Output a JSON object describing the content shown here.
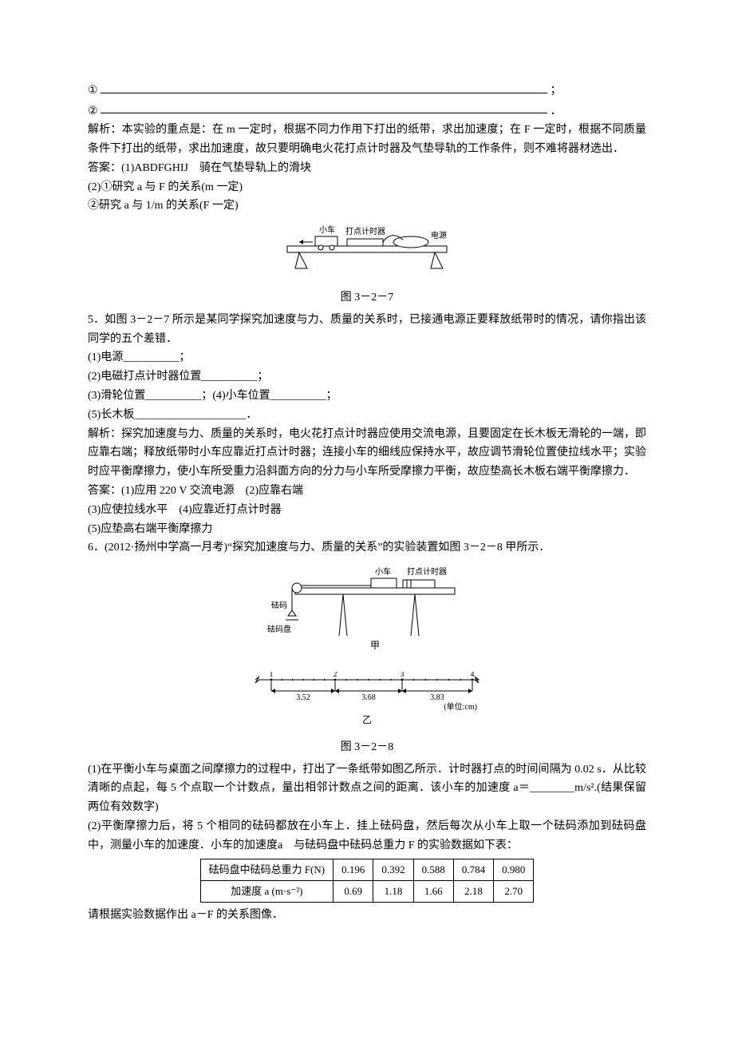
{
  "line1_prefix": "①",
  "line1_suffix": "；",
  "line2_prefix": "②",
  "line2_suffix": "．",
  "analysis1": "解析：本实验的重点是：在 m 一定时，根据不同力作用下打出的纸带，求出加速度；在 F 一定时，根据不同质量条件下打出的纸带，求出加速度，故只要明确电火花打点计时器及气垫导轨的工作条件，则不难将器材选出．",
  "ans1_l1": "答案：(1)ABDFGHIJ　骑在气垫导轨上的滑块",
  "ans1_l2": "(2)①研究 a 与 F 的关系(m 一定)",
  "ans1_l3": "②研究 a 与 1/m 的关系(F 一定)",
  "fig1_caption": "图 3－2－7",
  "fig1_labels": {
    "car": "小车",
    "timer": "打点计时器",
    "power": "电源"
  },
  "q5_stem": "5．如图 3－2－7 所示是某同学探究加速度与力、质量的关系时，已接通电源正要释放纸带时的情况，请你指出该同学的五个差错．",
  "q5_1": "(1)电源__________；",
  "q5_2": "(2)电磁打点计时器位置__________；",
  "q5_3": "(3)滑轮位置__________；(4)小车位置__________；",
  "q5_5": "(5)长木板____________________．",
  "analysis2": "解析：探究加速度与力、质量的关系时，电火花打点计时器应使用交流电源，且要固定在长木板无滑轮的一端，即应靠右端；释放纸带时小车应靠近打点计时器；连接小车的细线应保持水平，故应调节滑轮位置使拉线水平；实验时应平衡摩擦力，使小车所受重力沿斜面方向的分力与小车所受摩擦力平衡，故应垫高长木板右端平衡摩擦力．",
  "ans2_l1": "答案：(1)应用 220 V 交流电源　(2)应靠右端",
  "ans2_l2": "(3)应使拉线水平　(4)应靠近打点计时器",
  "ans2_l3": "(5)应垫高右端平衡摩擦力",
  "q6_stem": "6．(2012·扬州中学高一月考)“探究加速度与力、质量的关系”的实验装置如图 3－2－8 甲所示．",
  "fig2_labels": {
    "car": "小车",
    "timer": "打点计时器",
    "weight": "砝码",
    "pan": "砝码盘",
    "jia": "甲"
  },
  "tape": {
    "marks": [
      "1",
      "2",
      "3",
      "4"
    ],
    "dists": [
      "3.52",
      "3.68",
      "3.83"
    ],
    "unit": "(单位:cm)",
    "yi": "乙"
  },
  "fig2_caption": "图 3－2－8",
  "q6_1": "(1)在平衡小车与桌面之间摩擦力的过程中，打出了一条纸带如图乙所示．计时器打点的时间间隔为 0.02 s．从比较清晰的点起，每 5 个点取一个计数点，量出相邻计数点之间的距离．该小车的加速度 a＝________m/s².(结果保留两位有效数字)",
  "q6_2": "(2)平衡摩擦力后，将 5 个相同的砝码都放在小车上．挂上砝码盘，然后每次从小车上取一个砝码添加到砝码盘中，测量小车的加速度．小车的加速度a　与砝码盘中砝码总重力 F 的实验数据如下表：",
  "table": {
    "h1": "砝码盘中砝码总重力 F(N)",
    "h2": "加速度 a (m·s⁻²)",
    "r1": [
      "0.196",
      "0.392",
      "0.588",
      "0.784",
      "0.980"
    ],
    "r2": [
      "0.69",
      "1.18",
      "1.66",
      "2.18",
      "2.70"
    ]
  },
  "q6_tail": "请根据实验数据作出 a－F 的关系图像．",
  "colors": {
    "line": "#000000",
    "bg": "#ffffff"
  }
}
